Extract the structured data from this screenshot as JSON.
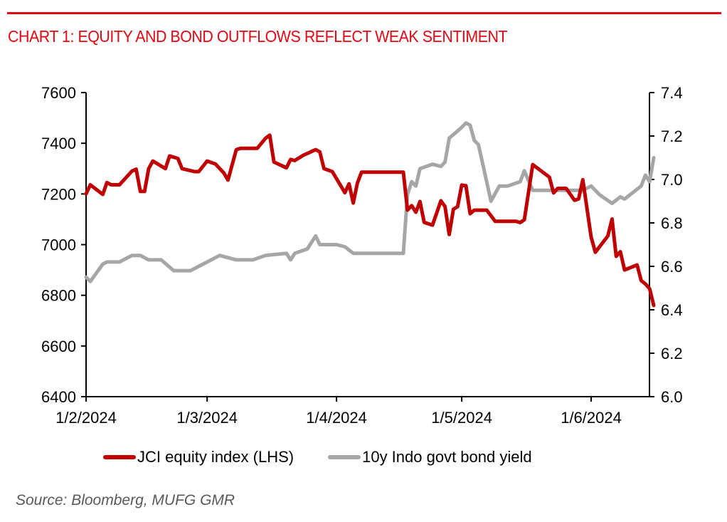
{
  "chart_data": {
    "type": "line",
    "title": "CHART 1: EQUITY AND BOND OUTFLOWS REFLECT WEAK SENTIMENT",
    "source": "Source: Bloomberg, MUFG GMR",
    "x_axis": {
      "type": "date",
      "range": [
        "2024-02-01",
        "2024-06-14"
      ],
      "ticks": [
        {
          "date": "2024-02-01",
          "label": "1/2/2024"
        },
        {
          "date": "2024-03-01",
          "label": "1/3/2024"
        },
        {
          "date": "2024-04-01",
          "label": "1/4/2024"
        },
        {
          "date": "2024-05-01",
          "label": "1/5/2024"
        },
        {
          "date": "2024-06-01",
          "label": "1/6/2024"
        }
      ]
    },
    "y_left": {
      "range": [
        6400,
        7600
      ],
      "ticks": [
        "6400",
        "6600",
        "6800",
        "7000",
        "7200",
        "7400",
        "7600"
      ]
    },
    "y_right": {
      "range": [
        6.0,
        7.4
      ],
      "ticks": [
        "6.0",
        "6.2",
        "6.4",
        "6.6",
        "6.8",
        "7.0",
        "7.2",
        "7.4"
      ]
    },
    "legend": {
      "placement": "bottom"
    },
    "grid": false,
    "series": [
      {
        "name": "JCI equity index (LHS)",
        "axis": "left",
        "color": "#c00000",
        "points": [
          [
            "2024-02-01",
            7200
          ],
          [
            "2024-02-02",
            7236
          ],
          [
            "2024-02-05",
            7198
          ],
          [
            "2024-02-06",
            7245
          ],
          [
            "2024-02-07",
            7236
          ],
          [
            "2024-02-09",
            7236
          ],
          [
            "2024-02-12",
            7290
          ],
          [
            "2024-02-13",
            7298
          ],
          [
            "2024-02-14",
            7210
          ],
          [
            "2024-02-15",
            7210
          ],
          [
            "2024-02-16",
            7300
          ],
          [
            "2024-02-17",
            7330
          ],
          [
            "2024-02-20",
            7300
          ],
          [
            "2024-02-21",
            7350
          ],
          [
            "2024-02-23",
            7340
          ],
          [
            "2024-02-24",
            7300
          ],
          [
            "2024-02-27",
            7288
          ],
          [
            "2024-02-28",
            7288
          ],
          [
            "2024-03-01",
            7330
          ],
          [
            "2024-03-03",
            7318
          ],
          [
            "2024-03-05",
            7283
          ],
          [
            "2024-03-06",
            7255
          ],
          [
            "2024-03-08",
            7375
          ],
          [
            "2024-03-09",
            7380
          ],
          [
            "2024-03-13",
            7380
          ],
          [
            "2024-03-15",
            7420
          ],
          [
            "2024-03-16",
            7432
          ],
          [
            "2024-03-17",
            7326
          ],
          [
            "2024-03-20",
            7303
          ],
          [
            "2024-03-21",
            7336
          ],
          [
            "2024-03-22",
            7332
          ],
          [
            "2024-03-24",
            7352
          ],
          [
            "2024-03-27",
            7375
          ],
          [
            "2024-03-28",
            7366
          ],
          [
            "2024-03-29",
            7300
          ],
          [
            "2024-03-31",
            7288
          ],
          [
            "2024-04-03",
            7205
          ],
          [
            "2024-04-04",
            7240
          ],
          [
            "2024-04-05",
            7164
          ],
          [
            "2024-04-06",
            7243
          ],
          [
            "2024-04-07",
            7286
          ],
          [
            "2024-04-17",
            7286
          ],
          [
            "2024-04-18",
            7136
          ],
          [
            "2024-04-19",
            7154
          ],
          [
            "2024-04-20",
            7128
          ],
          [
            "2024-04-21",
            7170
          ],
          [
            "2024-04-22",
            7088
          ],
          [
            "2024-04-24",
            7077
          ],
          [
            "2024-04-26",
            7173
          ],
          [
            "2024-04-27",
            7150
          ],
          [
            "2024-04-28",
            7040
          ],
          [
            "2024-04-29",
            7140
          ],
          [
            "2024-04-30",
            7150
          ],
          [
            "2024-05-01",
            7235
          ],
          [
            "2024-05-02",
            7232
          ],
          [
            "2024-05-03",
            7122
          ],
          [
            "2024-05-04",
            7136
          ],
          [
            "2024-05-07",
            7136
          ],
          [
            "2024-05-09",
            7092
          ],
          [
            "2024-05-14",
            7092
          ],
          [
            "2024-05-15",
            7087
          ],
          [
            "2024-05-16",
            7098
          ],
          [
            "2024-05-18",
            7316
          ],
          [
            "2024-05-22",
            7266
          ],
          [
            "2024-05-23",
            7204
          ],
          [
            "2024-05-24",
            7222
          ],
          [
            "2024-05-26",
            7222
          ],
          [
            "2024-05-28",
            7175
          ],
          [
            "2024-05-29",
            7180
          ],
          [
            "2024-05-30",
            7256
          ],
          [
            "2024-06-01",
            7030
          ],
          [
            "2024-06-02",
            6970
          ],
          [
            "2024-06-05",
            7034
          ],
          [
            "2024-06-06",
            7101
          ],
          [
            "2024-06-07",
            6954
          ],
          [
            "2024-06-08",
            6972
          ],
          [
            "2024-06-09",
            6900
          ],
          [
            "2024-06-12",
            6920
          ],
          [
            "2024-06-13",
            6858
          ],
          [
            "2024-06-14",
            6845
          ],
          [
            "2024-06-15",
            6826
          ],
          [
            "2024-06-16",
            6760
          ]
        ]
      },
      {
        "name": "10y Indo govt bond yield",
        "axis": "right",
        "color": "#a6a6a6",
        "points": [
          [
            "2024-02-01",
            6.55
          ],
          [
            "2024-02-02",
            6.53
          ],
          [
            "2024-02-05",
            6.61
          ],
          [
            "2024-02-06",
            6.62
          ],
          [
            "2024-02-09",
            6.62
          ],
          [
            "2024-02-12",
            6.65
          ],
          [
            "2024-02-14",
            6.65
          ],
          [
            "2024-02-16",
            6.63
          ],
          [
            "2024-02-19",
            6.63
          ],
          [
            "2024-02-22",
            6.58
          ],
          [
            "2024-02-26",
            6.58
          ],
          [
            "2024-02-28",
            6.6
          ],
          [
            "2024-03-01",
            6.62
          ],
          [
            "2024-03-04",
            6.65
          ],
          [
            "2024-03-08",
            6.63
          ],
          [
            "2024-03-12",
            6.63
          ],
          [
            "2024-03-15",
            6.65
          ],
          [
            "2024-03-20",
            6.66
          ],
          [
            "2024-03-21",
            6.63
          ],
          [
            "2024-03-22",
            6.66
          ],
          [
            "2024-03-25",
            6.68
          ],
          [
            "2024-03-27",
            6.74
          ],
          [
            "2024-03-28",
            6.7
          ],
          [
            "2024-04-01",
            6.7
          ],
          [
            "2024-04-03",
            6.69
          ],
          [
            "2024-04-05",
            6.66
          ],
          [
            "2024-04-17",
            6.66
          ],
          [
            "2024-04-18",
            6.93
          ],
          [
            "2024-04-19",
            6.99
          ],
          [
            "2024-04-20",
            6.97
          ],
          [
            "2024-04-21",
            7.05
          ],
          [
            "2024-04-24",
            7.07
          ],
          [
            "2024-04-26",
            7.06
          ],
          [
            "2024-04-27",
            7.08
          ],
          [
            "2024-04-28",
            7.19
          ],
          [
            "2024-05-01",
            7.24
          ],
          [
            "2024-05-02",
            7.26
          ],
          [
            "2024-05-03",
            7.25
          ],
          [
            "2024-05-04",
            7.18
          ],
          [
            "2024-05-05",
            7.16
          ],
          [
            "2024-05-08",
            6.9
          ],
          [
            "2024-05-10",
            6.97
          ],
          [
            "2024-05-12",
            6.97
          ],
          [
            "2024-05-15",
            6.99
          ],
          [
            "2024-05-16",
            7.04
          ],
          [
            "2024-05-18",
            6.95
          ],
          [
            "2024-05-30",
            6.95
          ],
          [
            "2024-06-01",
            6.97
          ],
          [
            "2024-06-03",
            6.93
          ],
          [
            "2024-06-06",
            6.89
          ],
          [
            "2024-06-08",
            6.92
          ],
          [
            "2024-06-09",
            6.91
          ],
          [
            "2024-06-13",
            6.97
          ],
          [
            "2024-06-14",
            7.02
          ],
          [
            "2024-06-15",
            6.99
          ],
          [
            "2024-06-16",
            7.1
          ]
        ]
      }
    ]
  }
}
